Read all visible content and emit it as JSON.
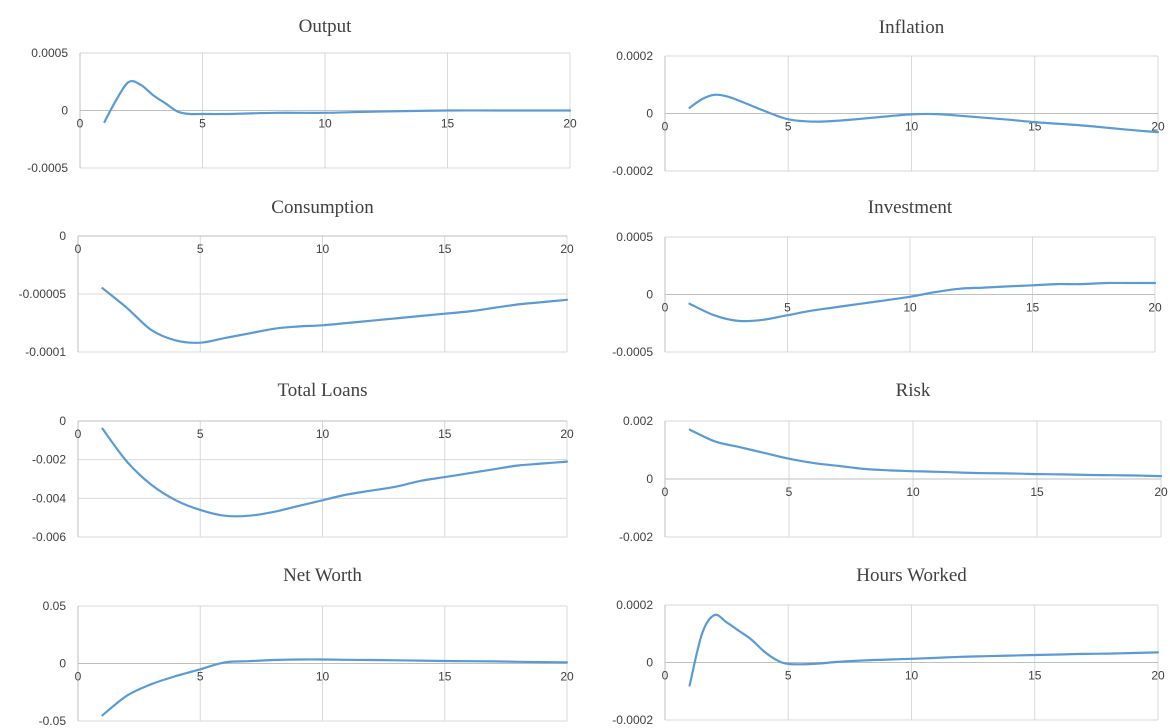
{
  "chart_data": [
    {
      "type": "line",
      "title": "Output",
      "xlabel": "",
      "ylabel": "",
      "xlim": [
        0,
        20
      ],
      "ylim": [
        -0.0005,
        0.0005
      ],
      "xticks": [
        "0",
        "5",
        "10",
        "15",
        "20"
      ],
      "yticks": [
        "0.0005",
        "0",
        "-0.0005"
      ],
      "grid": true,
      "x": [
        1,
        1.5,
        2,
        2.5,
        3,
        3.5,
        4,
        4.5,
        5,
        6,
        8,
        10,
        12,
        15,
        17,
        20
      ],
      "series": [
        {
          "values": [
            -0.0001,
            0.0001,
            0.00025,
            0.00022,
            0.00013,
            6e-05,
            -1e-05,
            -3e-05,
            -3e-05,
            -3e-05,
            -2e-05,
            -2e-05,
            -1e-05,
            0,
            0,
            0
          ]
        }
      ]
    },
    {
      "type": "line",
      "title": "Inflation",
      "xlabel": "",
      "ylabel": "",
      "xlim": [
        0,
        20
      ],
      "ylim": [
        -0.0002,
        0.0002
      ],
      "xticks": [
        "0",
        "5",
        "10",
        "15",
        "20"
      ],
      "yticks": [
        "0.0002",
        "0",
        "-0.0002"
      ],
      "grid": true,
      "x": [
        1,
        1.5,
        2,
        2.5,
        3,
        4,
        5,
        6,
        7,
        8,
        9,
        10,
        11,
        12,
        13,
        14,
        15,
        16,
        17,
        18,
        19,
        20
      ],
      "series": [
        {
          "values": [
            2e-05,
            5e-05,
            6.5e-05,
            6e-05,
            4.5e-05,
            1e-05,
            -2e-05,
            -2.8e-05,
            -2.5e-05,
            -1.8e-05,
            -1e-05,
            -3e-06,
            -2e-06,
            -8e-06,
            -1.5e-05,
            -2.2e-05,
            -3e-05,
            -3.6e-05,
            -4.2e-05,
            -5e-05,
            -5.8e-05,
            -6.5e-05
          ]
        }
      ]
    },
    {
      "type": "line",
      "title": "Consumption",
      "xlabel": "",
      "ylabel": "",
      "xlim": [
        0,
        20
      ],
      "ylim": [
        -0.0001,
        0
      ],
      "xticks": [
        "0",
        "5",
        "10",
        "15",
        "20"
      ],
      "yticks": [
        "0",
        "-0.00005",
        "-0.0001"
      ],
      "grid": true,
      "x": [
        1,
        2,
        3,
        4,
        5,
        6,
        7,
        8,
        9,
        10,
        11,
        12,
        13,
        14,
        15,
        16,
        17,
        18,
        19,
        20
      ],
      "series": [
        {
          "values": [
            -4.5e-05,
            -6.2e-05,
            -8.1e-05,
            -9e-05,
            -9.2e-05,
            -8.8e-05,
            -8.4e-05,
            -8e-05,
            -7.8e-05,
            -7.7e-05,
            -7.5e-05,
            -7.3e-05,
            -7.1e-05,
            -6.9e-05,
            -6.7e-05,
            -6.5e-05,
            -6.2e-05,
            -5.9e-05,
            -5.7e-05,
            -5.5e-05
          ]
        }
      ]
    },
    {
      "type": "line",
      "title": "Investment",
      "xlabel": "",
      "ylabel": "",
      "xlim": [
        0,
        20
      ],
      "ylim": [
        -0.0005,
        0.0005
      ],
      "xticks": [
        "0",
        "5",
        "10",
        "15",
        "20"
      ],
      "yticks": [
        "0.0005",
        "0",
        "-0.0005"
      ],
      "grid": true,
      "x": [
        1,
        2,
        3,
        4,
        5,
        6,
        7,
        8,
        9,
        10,
        11,
        12,
        13,
        14,
        15,
        16,
        17,
        18,
        19,
        20
      ],
      "series": [
        {
          "values": [
            -8e-05,
            -0.00018,
            -0.00023,
            -0.00022,
            -0.00018,
            -0.00014,
            -0.00011,
            -8e-05,
            -5e-05,
            -2e-05,
            2e-05,
            5e-05,
            6e-05,
            7e-05,
            8e-05,
            9e-05,
            9e-05,
            0.0001,
            0.0001,
            0.0001
          ]
        }
      ]
    },
    {
      "type": "line",
      "title": "Total Loans",
      "xlabel": "",
      "ylabel": "",
      "xlim": [
        0,
        20
      ],
      "ylim": [
        -0.006,
        0
      ],
      "xticks": [
        "0",
        "5",
        "10",
        "15",
        "20"
      ],
      "yticks": [
        "0",
        "-0.002",
        "-0.004",
        "-0.006"
      ],
      "grid": true,
      "x": [
        1,
        2,
        3,
        4,
        5,
        6,
        7,
        8,
        9,
        10,
        11,
        12,
        13,
        14,
        15,
        16,
        17,
        18,
        19,
        20
      ],
      "series": [
        {
          "values": [
            -0.0004,
            -0.0021,
            -0.0033,
            -0.0041,
            -0.0046,
            -0.0049,
            -0.0049,
            -0.0047,
            -0.0044,
            -0.0041,
            -0.0038,
            -0.0036,
            -0.0034,
            -0.0031,
            -0.0029,
            -0.0027,
            -0.0025,
            -0.0023,
            -0.0022,
            -0.0021
          ]
        }
      ]
    },
    {
      "type": "line",
      "title": "Risk",
      "xlabel": "",
      "ylabel": "",
      "xlim": [
        0,
        20
      ],
      "ylim": [
        -0.002,
        0.002
      ],
      "xticks": [
        "0",
        "5",
        "10",
        "15",
        "20"
      ],
      "yticks": [
        "0.002",
        "0",
        "-0.002"
      ],
      "grid": true,
      "x": [
        1,
        2,
        3,
        4,
        5,
        6,
        7,
        8,
        9,
        10,
        11,
        12,
        13,
        14,
        15,
        16,
        17,
        18,
        19,
        20
      ],
      "series": [
        {
          "values": [
            0.0017,
            0.0013,
            0.0011,
            0.0009,
            0.0007,
            0.00055,
            0.00045,
            0.00035,
            0.0003,
            0.00027,
            0.00025,
            0.00022,
            0.0002,
            0.00019,
            0.00017,
            0.00016,
            0.00014,
            0.00013,
            0.00012,
            0.0001
          ]
        }
      ]
    },
    {
      "type": "line",
      "title": "Net Worth",
      "xlabel": "",
      "ylabel": "",
      "xlim": [
        0,
        20
      ],
      "ylim": [
        -0.05,
        0.05
      ],
      "xticks": [
        "0",
        "5",
        "10",
        "15",
        "20"
      ],
      "yticks": [
        "0.05",
        "0",
        "-0.05"
      ],
      "grid": true,
      "x": [
        1,
        2,
        3,
        4,
        5,
        6,
        7,
        8,
        9,
        10,
        11,
        12,
        13,
        14,
        15,
        16,
        17,
        18,
        19,
        20
      ],
      "series": [
        {
          "values": [
            -0.045,
            -0.028,
            -0.018,
            -0.011,
            -0.005,
            0.001,
            0.002,
            0.003,
            0.0035,
            0.0035,
            0.0032,
            0.003,
            0.0028,
            0.0025,
            0.0022,
            0.002,
            0.0018,
            0.0015,
            0.0012,
            0.001
          ]
        }
      ]
    },
    {
      "type": "line",
      "title": "Hours Worked",
      "xlabel": "",
      "ylabel": "",
      "xlim": [
        0,
        20
      ],
      "ylim": [
        -0.0002,
        0.0002
      ],
      "xticks": [
        "0",
        "5",
        "10",
        "15",
        "20"
      ],
      "yticks": [
        "0.0002",
        "0",
        "-0.0002"
      ],
      "grid": true,
      "x": [
        1,
        1.5,
        2,
        2.5,
        3,
        3.5,
        4,
        4.5,
        5,
        6,
        7,
        8,
        9,
        10,
        11,
        12,
        13,
        14,
        15,
        16,
        17,
        18,
        19,
        20
      ],
      "series": [
        {
          "values": [
            -8e-05,
            0.0001,
            0.000165,
            0.00014,
            0.00011,
            8e-05,
            4e-05,
            1e-05,
            -5e-06,
            -5e-06,
            2e-06,
            7e-06,
            1e-05,
            1.3e-05,
            1.6e-05,
            2e-05,
            2.2e-05,
            2.4e-05,
            2.6e-05,
            2.8e-05,
            3e-05,
            3.1e-05,
            3.3e-05,
            3.5e-05
          ]
        }
      ]
    }
  ],
  "colors": {
    "series": "#5b9bd5",
    "grid": "#d9d9d9",
    "axis": "#bfbfbf",
    "text": "#404040"
  }
}
